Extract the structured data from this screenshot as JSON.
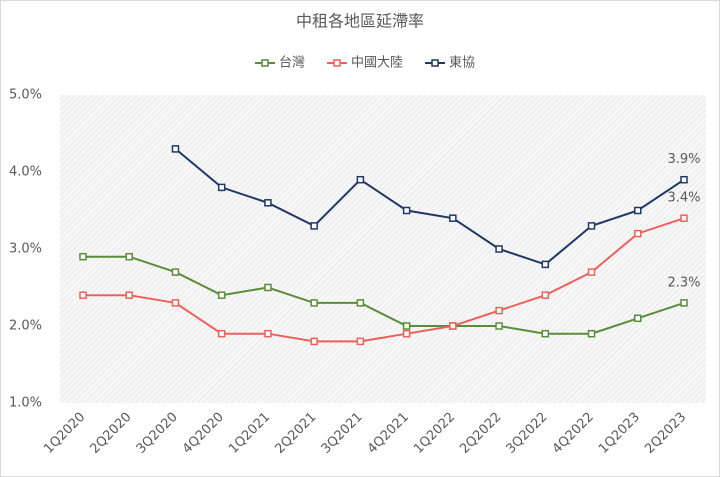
{
  "chart_data": {
    "type": "line",
    "title": "中租各地區延滯率",
    "categories": [
      "1Q2020",
      "2Q2020",
      "3Q2020",
      "4Q2020",
      "1Q2021",
      "2Q2021",
      "3Q2021",
      "4Q2021",
      "1Q2022",
      "2Q2022",
      "3Q2022",
      "4Q2022",
      "1Q2023",
      "2Q2023"
    ],
    "series": [
      {
        "name": "台灣",
        "color": "#5b8c3a",
        "values": [
          2.9,
          2.9,
          2.7,
          2.4,
          2.5,
          2.3,
          2.3,
          2.0,
          2.0,
          2.0,
          1.9,
          1.9,
          2.1,
          2.3
        ],
        "value_labels": [
          null,
          null,
          null,
          null,
          null,
          null,
          null,
          null,
          null,
          null,
          null,
          null,
          null,
          "2.3%"
        ]
      },
      {
        "name": "中國大陸",
        "color": "#f0605a",
        "values": [
          2.4,
          2.4,
          2.3,
          1.9,
          1.9,
          1.8,
          1.8,
          1.9,
          2.0,
          2.2,
          2.4,
          2.7,
          3.2,
          3.4
        ],
        "value_labels": [
          null,
          null,
          null,
          null,
          null,
          null,
          null,
          null,
          null,
          null,
          null,
          null,
          null,
          "3.4%"
        ]
      },
      {
        "name": "東協",
        "color": "#1f3864",
        "values": [
          null,
          null,
          4.3,
          3.8,
          3.6,
          3.3,
          3.9,
          3.5,
          3.4,
          3.0,
          2.8,
          3.3,
          3.5,
          3.9
        ],
        "value_labels": [
          null,
          null,
          null,
          null,
          null,
          null,
          null,
          null,
          null,
          null,
          null,
          null,
          null,
          "3.9%"
        ]
      }
    ],
    "ylim": [
      1,
      5
    ],
    "yticks": [
      {
        "value": 1,
        "label": "1.0%"
      },
      {
        "value": 2,
        "label": "2.0%"
      },
      {
        "value": 3,
        "label": "3.0%"
      },
      {
        "value": 4,
        "label": "4.0%"
      },
      {
        "value": 5,
        "label": "5.0%"
      }
    ],
    "legend": "top"
  }
}
